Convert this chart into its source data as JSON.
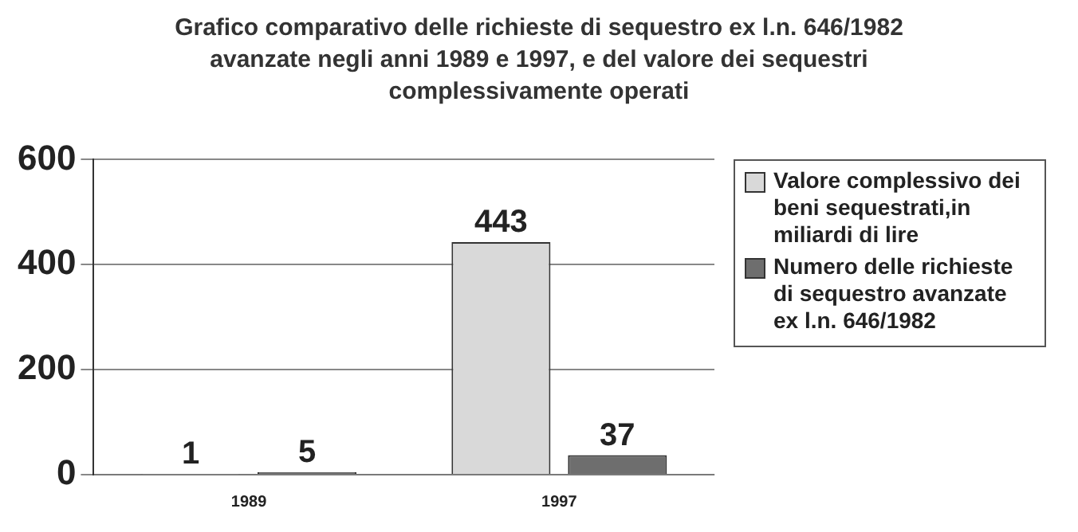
{
  "chart_data": {
    "type": "bar",
    "title": "Grafico comparativo delle richieste di sequestro ex l.n. 646/1982 avanzate negli anni 1989 e 1997, e del valore dei sequestri complessivamente operati",
    "categories": [
      "1989",
      "1997"
    ],
    "series": [
      {
        "name": "Valore complessivo dei beni sequestrati,in miliardi di lire",
        "color": "#d9d9d9",
        "values": [
          1,
          443
        ]
      },
      {
        "name": "Numero delle richieste di sequestro avanzate ex l.n. 646/1982",
        "color": "#6e6e6e",
        "values": [
          5,
          37
        ]
      }
    ],
    "ylim": [
      0,
      600
    ],
    "yticks": [
      0,
      200,
      400,
      600
    ],
    "grid": "y",
    "legend": "right",
    "data_labels": true
  }
}
